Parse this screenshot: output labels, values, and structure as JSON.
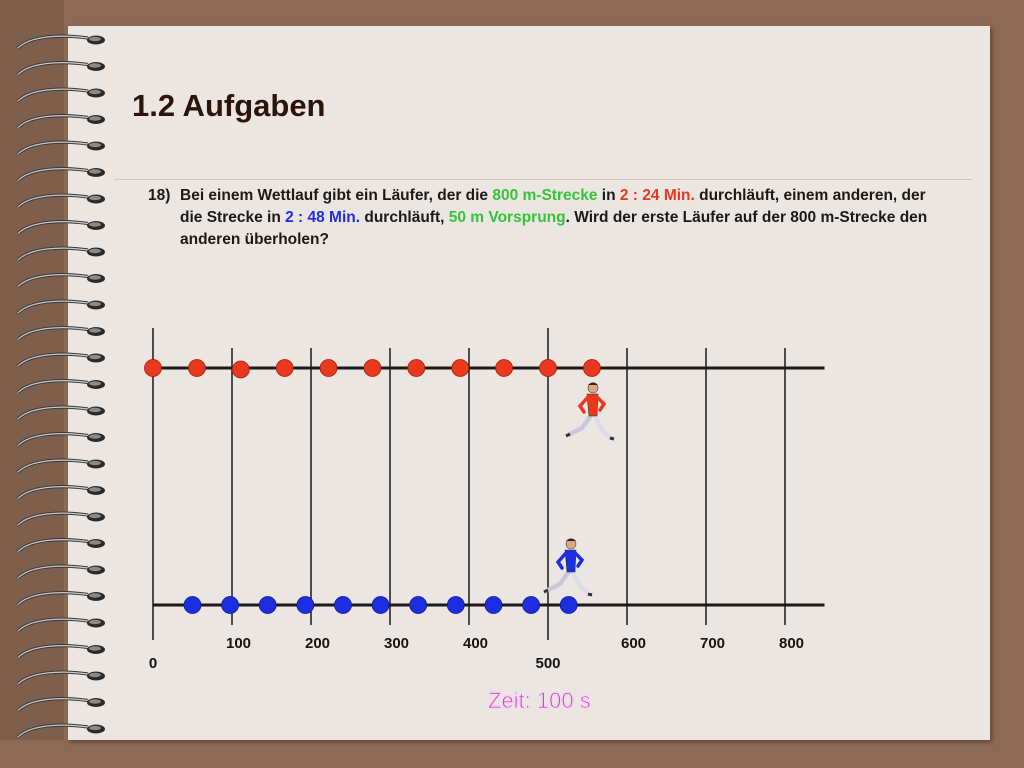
{
  "slide": {
    "title": "1.2 Aufgaben",
    "task_number": "18)",
    "task_parts": [
      {
        "text": "Bei einem Wettlauf gibt ein Läufer, der die ",
        "color": "default"
      },
      {
        "text": "800 m-Strecke",
        "color": "green"
      },
      {
        "text": " in ",
        "color": "default"
      },
      {
        "text": "2 : 24 Min.",
        "color": "red"
      },
      {
        "text": " durchläuft, einem anderen, der die Strecke in ",
        "color": "default"
      },
      {
        "text": "2 : 48 Min.",
        "color": "blue"
      },
      {
        "text": " durchläuft, ",
        "color": "default"
      },
      {
        "text": "50 m Vorsprung",
        "color": "green"
      },
      {
        "text": ". Wird der erste Läufer auf der 800 m-Strecke den anderen überholen?",
        "color": "default"
      }
    ]
  },
  "diagram": {
    "x_ticks": [
      "0",
      "100",
      "200",
      "300",
      "400",
      "500",
      "600",
      "700",
      "800"
    ],
    "axis_max_m": 850,
    "red_runner": {
      "color": "#e8391c",
      "positions_m": [
        0,
        55.6,
        111.1,
        166.7,
        222.2,
        277.8,
        333.3,
        388.9,
        444.4,
        500,
        555.6
      ],
      "icon": "runner-red-icon"
    },
    "blue_runner": {
      "color": "#1c2ee0",
      "positions_m": [
        50,
        97.6,
        145.2,
        192.9,
        240.5,
        288.1,
        335.7,
        383.3,
        431.0,
        478.6,
        526.2
      ],
      "icon": "runner-blue-icon"
    },
    "time_label": "Zeit: 100 s",
    "time_color": "#e23ad8"
  }
}
